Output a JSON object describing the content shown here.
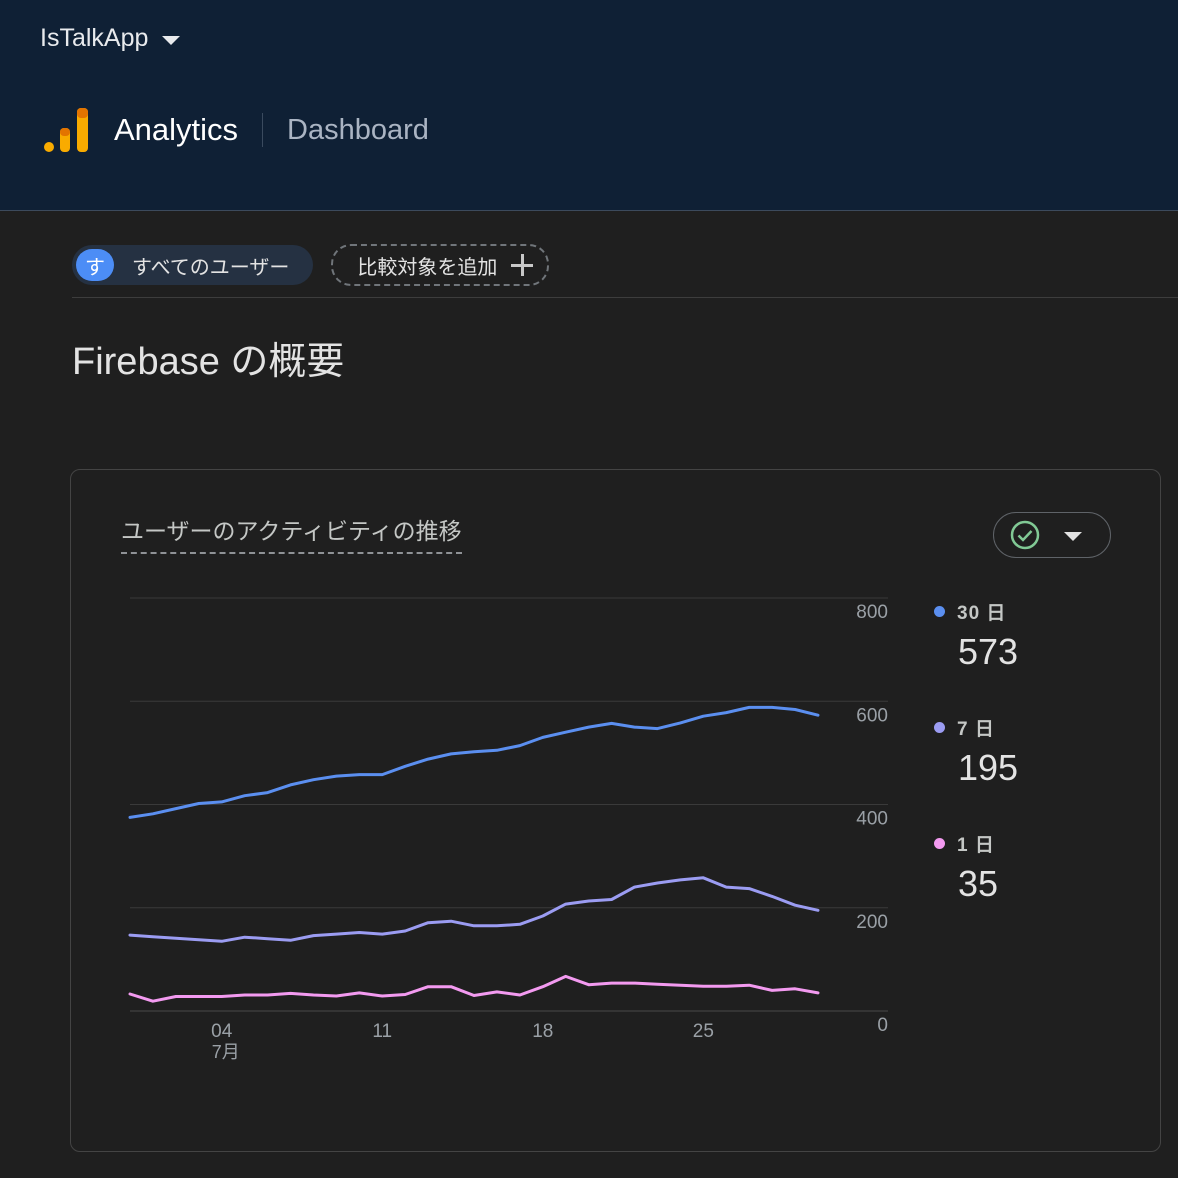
{
  "header": {
    "app_name": "IsTalkApp",
    "product": "Analytics",
    "page": "Dashboard"
  },
  "filters": {
    "all_users_avatar": "す",
    "all_users_label": "すべてのユーザー",
    "add_comparison_label": "比較対象を追加"
  },
  "page_title": "Firebase の概要",
  "card": {
    "title": "ユーザーのアクティビティの推移"
  },
  "legend": [
    {
      "label": "30 日",
      "value": "573",
      "color": "#5b8ff0"
    },
    {
      "label": "7 日",
      "value": "195",
      "color": "#9b9cf2"
    },
    {
      "label": "1 日",
      "value": "35",
      "color": "#f39af0"
    }
  ],
  "colors": {
    "brand_orange": "#f9ab00",
    "brand_orange_dark": "#e37400",
    "check_green": "#81c995"
  },
  "chart_data": {
    "type": "line",
    "x": [
      "06-30",
      "07-01",
      "07-02",
      "07-03",
      "07-04",
      "07-05",
      "07-06",
      "07-07",
      "07-08",
      "07-09",
      "07-10",
      "07-11",
      "07-12",
      "07-13",
      "07-14",
      "07-15",
      "07-16",
      "07-17",
      "07-18",
      "07-19",
      "07-20",
      "07-21",
      "07-22",
      "07-23",
      "07-24",
      "07-25",
      "07-26",
      "07-27",
      "07-28",
      "07-29",
      "07-30"
    ],
    "x_ticks": [
      {
        "index": 4,
        "label": "04",
        "sublabel": "7月"
      },
      {
        "index": 11,
        "label": "11"
      },
      {
        "index": 18,
        "label": "18"
      },
      {
        "index": 25,
        "label": "25"
      }
    ],
    "ylim": [
      0,
      800
    ],
    "yticks": [
      0,
      200,
      400,
      600,
      800
    ],
    "series": [
      {
        "name": "30 日",
        "color": "#5b8ff0",
        "values": [
          375,
          382,
          392,
          402,
          405,
          417,
          423,
          438,
          448,
          455,
          458,
          458,
          474,
          488,
          498,
          502,
          505,
          514,
          530,
          540,
          550,
          557,
          550,
          547,
          558,
          571,
          578,
          588,
          588,
          584,
          573
        ]
      },
      {
        "name": "7 日",
        "color": "#9b9cf2",
        "values": [
          147,
          144,
          141,
          138,
          135,
          143,
          140,
          137,
          146,
          149,
          152,
          149,
          155,
          171,
          174,
          165,
          165,
          168,
          184,
          207,
          213,
          216,
          240,
          248,
          254,
          258,
          240,
          237,
          222,
          205,
          195
        ]
      },
      {
        "name": "1 日",
        "color": "#f39af0",
        "values": [
          33,
          19,
          28,
          28,
          28,
          31,
          31,
          34,
          31,
          29,
          35,
          29,
          32,
          47,
          47,
          30,
          37,
          31,
          47,
          67,
          51,
          54,
          54,
          52,
          50,
          48,
          48,
          50,
          40,
          43,
          35
        ]
      }
    ]
  }
}
